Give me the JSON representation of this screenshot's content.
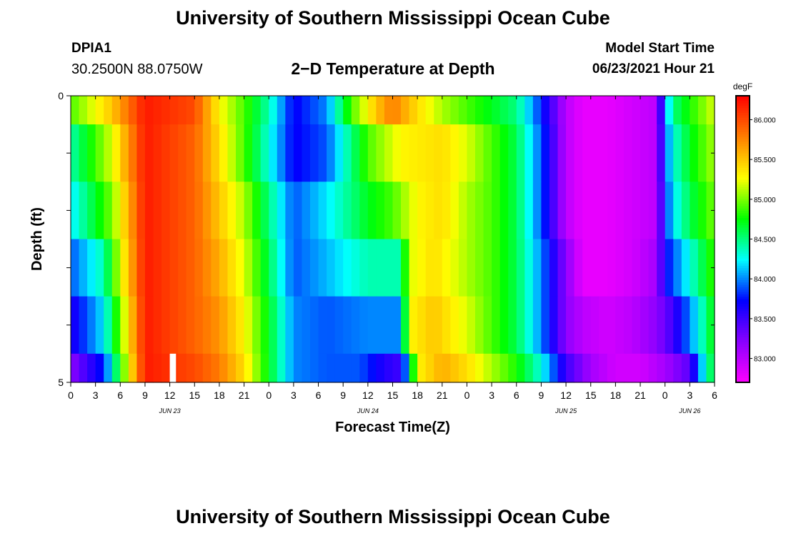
{
  "header": {
    "title": "University of Southern Mississippi Ocean Cube",
    "station_id": "DPIA1",
    "coordinates": "30.2500N  88.0750W",
    "subtitle": "2−D Temperature at Depth",
    "model_start_label": "Model Start Time",
    "model_start_value": "06/23/2021 Hour 21"
  },
  "footer": {
    "title": "University of Southern Mississippi Ocean Cube"
  },
  "colors": {
    "background": "#ffffff",
    "marker": "#ffffff",
    "axis": "#000000"
  },
  "chart_data": {
    "type": "heatmap",
    "xlabel": "Forecast Time(Z)",
    "ylabel": "Depth (ft)",
    "colorbar_unit": "degF",
    "colorbar_ticks": [
      "83.000",
      "83.500",
      "84.000",
      "84.500",
      "85.000",
      "85.500",
      "86.000"
    ],
    "colorbar_tick_values": [
      83.0,
      83.5,
      84.0,
      84.5,
      85.0,
      85.5,
      86.0
    ],
    "color_range": [
      82.7,
      86.3
    ],
    "colormap": [
      "#ff00ff",
      "#8a00ff",
      "#0000ff",
      "#00ffff",
      "#00ff00",
      "#ffff00",
      "#ff7f00",
      "#ff0000"
    ],
    "xlim": [
      0,
      78
    ],
    "ylim": [
      0,
      5
    ],
    "x_ticks": [
      0,
      3,
      6,
      9,
      12,
      15,
      18,
      21,
      24,
      27,
      30,
      33,
      36,
      39,
      42,
      45,
      48,
      51,
      54,
      57,
      60,
      63,
      66,
      69,
      72,
      75,
      78
    ],
    "x_tick_labels": [
      "0",
      "3",
      "6",
      "9",
      "12",
      "15",
      "18",
      "21",
      "0",
      "3",
      "6",
      "9",
      "12",
      "15",
      "18",
      "21",
      "0",
      "3",
      "6",
      "9",
      "12",
      "15",
      "18",
      "21",
      "0",
      "3",
      "6"
    ],
    "date_labels": [
      {
        "x": 12,
        "label": "JUN 23"
      },
      {
        "x": 36,
        "label": "JUN 24"
      },
      {
        "x": 60,
        "label": "JUN 25"
      },
      {
        "x": 75,
        "label": "JUN 26"
      }
    ],
    "y_ticks": [
      0,
      1,
      2,
      3,
      4,
      5
    ],
    "y_tick_labels": [
      "0",
      "",
      "",
      "",
      "",
      "5"
    ],
    "row_edges": [
      0,
      0.5,
      1.5,
      2.5,
      3.5,
      4.5,
      5
    ],
    "marker": {
      "x_start": 12,
      "x_end": 12.75,
      "y_start": 4.5,
      "y_end": 5
    },
    "rows": [
      {
        "depth": 0,
        "x": [
          0,
          5,
          9,
          15,
          18,
          21,
          24,
          27,
          31,
          34,
          37,
          39,
          42,
          45,
          48,
          51,
          54,
          57,
          60,
          62,
          65,
          68,
          71,
          72,
          73,
          75,
          78
        ],
        "t": [
          84.9,
          85.5,
          86.2,
          86.0,
          85.3,
          84.9,
          84.4,
          83.7,
          84.0,
          84.9,
          85.5,
          85.8,
          85.4,
          85.1,
          84.9,
          84.7,
          84.5,
          83.8,
          83.0,
          82.8,
          82.8,
          82.9,
          83.0,
          84.0,
          84.5,
          84.8,
          85.2
        ]
      },
      {
        "depth": 1,
        "x": [
          0,
          5,
          9,
          15,
          18,
          21,
          24,
          27,
          31,
          36,
          40,
          45,
          48,
          51,
          54,
          57,
          60,
          62,
          65,
          68,
          71,
          72,
          73,
          75,
          78
        ],
        "t": [
          84.4,
          85.2,
          86.2,
          85.9,
          85.4,
          84.9,
          84.3,
          83.7,
          83.9,
          84.9,
          85.3,
          85.4,
          85.2,
          84.9,
          84.6,
          83.9,
          83.0,
          82.8,
          82.8,
          82.9,
          83.0,
          83.9,
          84.3,
          84.7,
          85.1
        ]
      },
      {
        "depth": 2,
        "x": [
          0,
          5,
          9,
          15,
          18,
          21,
          24,
          27,
          31,
          36,
          39,
          42,
          45,
          48,
          51,
          54,
          57,
          60,
          62,
          65,
          68,
          71,
          72,
          73,
          75,
          78
        ],
        "t": [
          84.2,
          85.0,
          86.2,
          85.9,
          85.5,
          85.1,
          84.5,
          83.9,
          84.2,
          84.7,
          84.9,
          85.3,
          85.4,
          85.1,
          84.9,
          84.6,
          83.9,
          83.0,
          82.8,
          82.8,
          82.9,
          83.0,
          83.8,
          84.2,
          84.6,
          85.0
        ]
      },
      {
        "depth": 3,
        "x": [
          0,
          4,
          6,
          9,
          15,
          18,
          21,
          24,
          27,
          31,
          36,
          40,
          41,
          44,
          48,
          51,
          54,
          57,
          60,
          62,
          65,
          68,
          71,
          72,
          74,
          76,
          78
        ],
        "t": [
          83.9,
          84.4,
          85.2,
          86.2,
          85.9,
          85.6,
          85.2,
          84.6,
          83.9,
          84.1,
          84.4,
          84.4,
          85.2,
          85.4,
          85.1,
          84.9,
          84.6,
          84.0,
          83.2,
          82.8,
          82.8,
          82.9,
          83.1,
          83.7,
          84.1,
          84.5,
          84.9
        ]
      },
      {
        "depth": 4,
        "x": [
          0,
          4,
          6,
          9,
          15,
          18,
          21,
          24,
          27,
          31,
          36,
          40,
          41,
          44,
          48,
          51,
          54,
          57,
          60,
          62,
          65,
          68,
          71,
          73,
          75,
          77,
          78
        ],
        "t": [
          83.6,
          84.2,
          85.0,
          86.2,
          85.9,
          85.7,
          85.3,
          84.7,
          84.0,
          83.9,
          84.0,
          84.0,
          85.3,
          85.5,
          85.2,
          84.9,
          84.6,
          84.0,
          83.2,
          83.0,
          82.9,
          83.0,
          83.2,
          83.5,
          84.0,
          84.5,
          84.8
        ]
      },
      {
        "depth": 5,
        "x": [
          0,
          4,
          6,
          9,
          15,
          18,
          21,
          24,
          27,
          31,
          35,
          38,
          40,
          41,
          42,
          45,
          48,
          51,
          54,
          57,
          60,
          63,
          66,
          69,
          72,
          75,
          76,
          77,
          78
        ],
        "t": [
          83.2,
          83.8,
          84.8,
          86.2,
          86.0,
          85.8,
          85.4,
          84.7,
          84.0,
          83.9,
          83.9,
          83.6,
          83.5,
          84.3,
          85.3,
          85.6,
          85.4,
          85.1,
          84.8,
          84.3,
          83.5,
          83.1,
          82.9,
          82.9,
          83.1,
          83.4,
          83.9,
          84.4,
          84.7
        ]
      }
    ]
  }
}
